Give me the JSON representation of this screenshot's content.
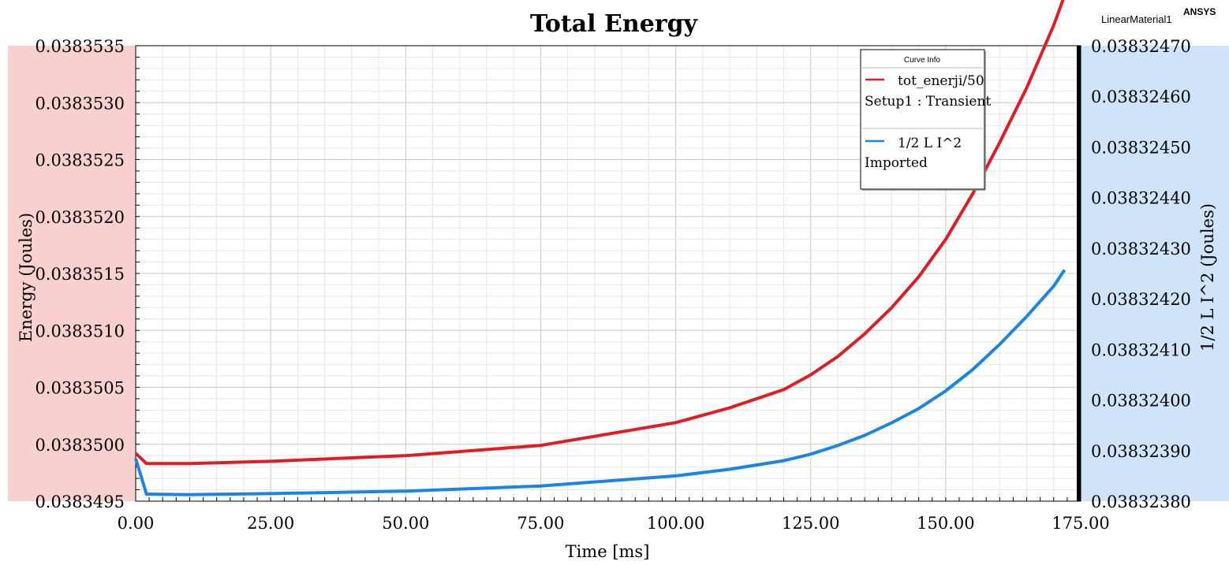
{
  "header": {
    "title": "Total Energy",
    "design_name": "LinearMaterial1",
    "brand": "ANSYS"
  },
  "legend": {
    "title": "Curve Info",
    "entries": [
      {
        "name": "tot_enerji/50",
        "source": "Setup1 : Transient",
        "color": "#e31c23"
      },
      {
        "name": "1/2 L I^2",
        "source": "Imported",
        "color": "#1a85e8"
      }
    ]
  },
  "colors": {
    "left_band": "#f8d0d0",
    "right_band": "#cfe4f9",
    "grid_major": "#c8c8c8",
    "grid_minor": "#e6e6e6"
  },
  "chart_data": {
    "type": "line",
    "title": "Total Energy",
    "xlabel": "Time [ms]",
    "ylabel_left": "Energy (Joules)",
    "ylabel_right": "1/2 L I^2 (Joules)",
    "xlim": [
      0,
      175
    ],
    "ylim_left": [
      0.0383495,
      0.0383535
    ],
    "ylim_right": [
      0.0383238,
      0.0383247
    ],
    "x_ticks": [
      "0.00",
      "25.00",
      "50.00",
      "75.00",
      "100.00",
      "125.00",
      "150.00",
      "175.00"
    ],
    "y_ticks_left": [
      "0.0383535",
      "0.0383530",
      "0.0383525",
      "0.0383520",
      "0.0383515",
      "0.0383510",
      "0.0383505",
      "0.0383500",
      "0.0383495"
    ],
    "y_ticks_right": [
      "0.03832470",
      "0.03832460",
      "0.03832450",
      "0.03832440",
      "0.03832430",
      "0.03832420",
      "0.03832410",
      "0.03832400",
      "0.03832390",
      "0.03832380"
    ],
    "grid": true,
    "legend_position": "top-right",
    "series": [
      {
        "name": "tot_enerji/50",
        "axis": "left",
        "x": [
          0,
          2,
          10,
          25,
          50,
          75,
          100,
          110,
          120,
          125,
          130,
          135,
          140,
          145,
          150,
          155,
          160,
          165,
          170,
          172
        ],
        "y": [
          0.03834992,
          0.03834983,
          0.03834983,
          0.03834985,
          0.0383499,
          0.03834999,
          0.03835019,
          0.03835032,
          0.03835048,
          0.03835061,
          0.03835077,
          0.03835097,
          0.0383512,
          0.03835147,
          0.0383518,
          0.0383522,
          0.03835265,
          0.03835313,
          0.03835368,
          0.03835394
        ]
      },
      {
        "name": "1/2 L I^2",
        "axis": "right",
        "x": [
          0,
          2,
          10,
          25,
          50,
          75,
          100,
          110,
          120,
          125,
          130,
          135,
          140,
          145,
          150,
          155,
          160,
          165,
          170,
          172
        ],
        "y": [
          0.038323884,
          0.038323814,
          0.038323813,
          0.038323815,
          0.03832382,
          0.03832383,
          0.03832385,
          0.038323863,
          0.03832388,
          0.038323893,
          0.03832391,
          0.03832393,
          0.038323955,
          0.038323983,
          0.038324018,
          0.03832406,
          0.03832411,
          0.038324165,
          0.038324225,
          0.038324257
        ]
      }
    ]
  }
}
